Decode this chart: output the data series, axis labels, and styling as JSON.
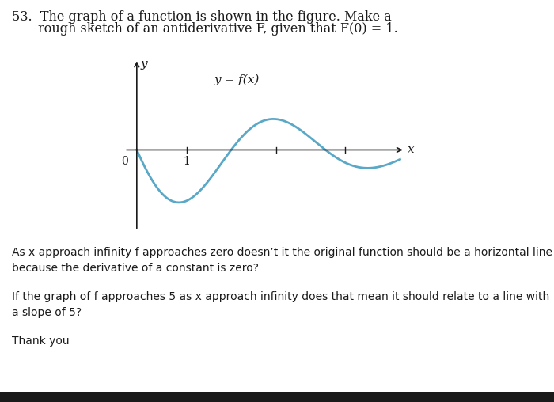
{
  "title_line1": "53.  The graph of a function is shown in the figure. Make a",
  "title_line2": "rough sketch of an antiderivative F, given that F(0) = 1.",
  "curve_label": "y = f(x)",
  "x_axis_label": "x",
  "y_axis_label": "y",
  "zero_label": "0",
  "one_label": "1",
  "curve_color": "#5aa8c8",
  "text_color": "#1a1a1a",
  "background_color": "#ffffff",
  "paragraph1": "As x approach infinity f approaches zero doesn’t it the original function should be a horizontal line\nbecause the derivative of a constant is zero?",
  "paragraph2": "If the graph of f approaches 5 as x approach infinity does that mean it should relate to a line with\na slope of 5?",
  "paragraph3": "Thank you",
  "bottom_bar_color": "#1a1a1a"
}
